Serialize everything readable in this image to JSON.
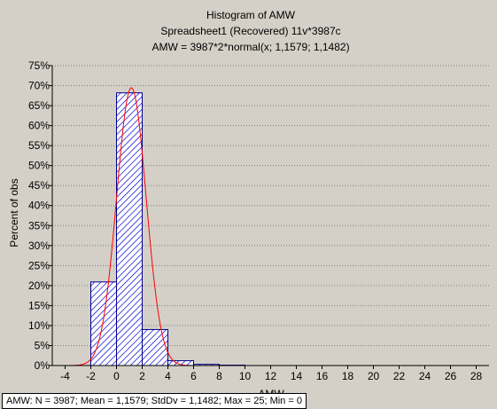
{
  "chart_data": {
    "type": "bar",
    "title": "Histogram of AMW",
    "subtitle": "Spreadsheet1   (Recovered) 11v*3987c",
    "fit_formula": "AMW = 3987*2*normal(x; 1,1579; 1,1482)",
    "xlabel": "AMW",
    "ylabel": "Percent of obs",
    "xlim": [
      -5,
      29
    ],
    "ylim": [
      0,
      75
    ],
    "x_ticks": [
      -4,
      -2,
      0,
      2,
      4,
      6,
      8,
      10,
      12,
      14,
      16,
      18,
      20,
      22,
      24,
      26,
      28
    ],
    "y_ticks": [
      0,
      5,
      10,
      15,
      20,
      25,
      30,
      35,
      40,
      45,
      50,
      55,
      60,
      65,
      70,
      75
    ],
    "y_tick_suffix": "%",
    "grid": true,
    "bins": [
      {
        "from": -2,
        "to": 0,
        "value": 20.9
      },
      {
        "from": 0,
        "to": 2,
        "value": 68.2
      },
      {
        "from": 2,
        "to": 4,
        "value": 9.0
      },
      {
        "from": 4,
        "to": 6,
        "value": 1.2
      },
      {
        "from": 6,
        "to": 8,
        "value": 0.3
      },
      {
        "from": 8,
        "to": 10,
        "value": 0.1
      }
    ],
    "fit": {
      "type": "normal",
      "mean": 1.1579,
      "sd": 1.1482,
      "bin_width": 2
    },
    "colors": {
      "bar_stroke": "#00008b",
      "hatch": "#0000cd",
      "fit_line": "#ff0000",
      "grid": "#808080",
      "background": "#d4d0c8"
    }
  },
  "footer": {
    "stats": "AMW:  N = 3987; Mean = 1,1579; StdDv = 1,1482; Max = 25; Min = 0"
  }
}
